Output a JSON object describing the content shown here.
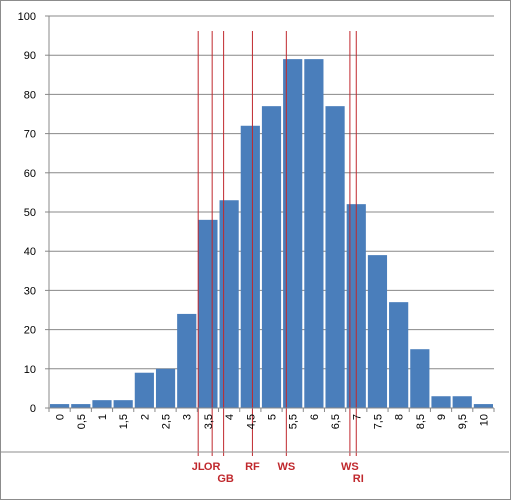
{
  "chart_data": {
    "type": "bar",
    "title": "",
    "xlabel": "",
    "ylabel": "",
    "ylim": [
      0,
      100
    ],
    "yticks": [
      "0",
      "10",
      "20",
      "30",
      "40",
      "50",
      "60",
      "70",
      "80",
      "90",
      "100"
    ],
    "grid": "horizontal",
    "categories": [
      "0",
      "0,5",
      "1",
      "1,5",
      "2",
      "2,5",
      "3",
      "3,5",
      "4",
      "4,5",
      "5",
      "5,5",
      "6",
      "6,5",
      "7",
      "7,5",
      "8",
      "8,5",
      "9",
      "9,5",
      "10"
    ],
    "values": [
      1,
      1,
      2,
      2,
      9,
      10,
      24,
      48,
      53,
      72,
      77,
      89,
      89,
      77,
      52,
      39,
      27,
      15,
      3,
      3,
      1
    ],
    "bar_color": "#4a7ebb",
    "markers": [
      {
        "label": "JL",
        "x": 3.27
      },
      {
        "label": "OR",
        "x": 3.6
      },
      {
        "label": "GB",
        "x": 3.87
      },
      {
        "label": "RF",
        "x": 4.55
      },
      {
        "label": "WS",
        "x": 5.35
      },
      {
        "label": "WS",
        "x": 6.85
      },
      {
        "label": "RI",
        "x": 7.0
      }
    ],
    "marker_color": "#c0282d"
  }
}
